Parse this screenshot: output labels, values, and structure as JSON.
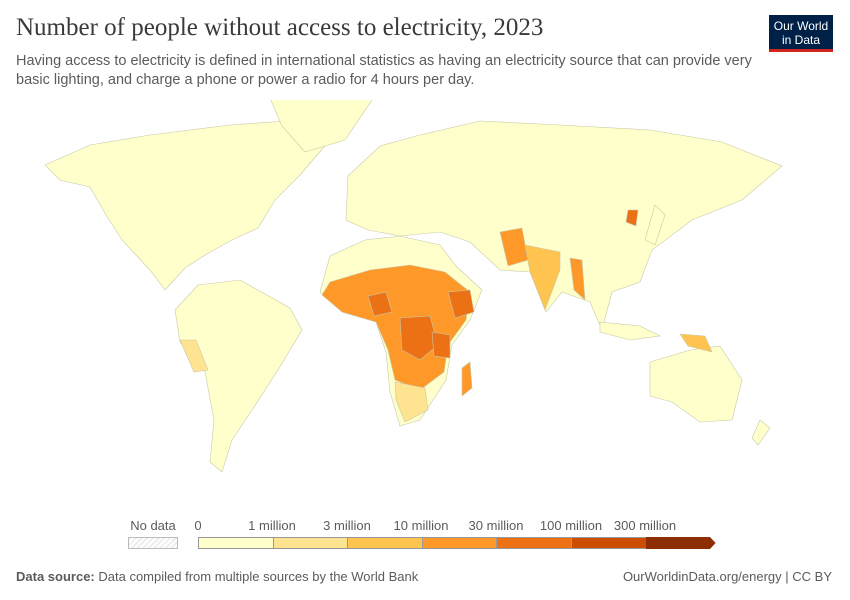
{
  "header": {
    "title": "Number of people without access to electricity, 2023",
    "subtitle": "Having access to electricity is defined in international statistics as having an electricity source that can provide very basic lighting, and charge a phone or power a radio for 4 hours per day.",
    "logo_text": "Our World in Data"
  },
  "legend": {
    "no_data_label": "No data",
    "labels": [
      "0",
      "1 million",
      "3 million",
      "10 million",
      "30 million",
      "100 million",
      "300 million"
    ],
    "colors": [
      "#ffffcc",
      "#fee391",
      "#fec44f",
      "#fe9929",
      "#ec7014",
      "#cc4c02",
      "#8c2d04"
    ]
  },
  "footer": {
    "source_label": "Data source:",
    "source_text": "Data compiled from multiple sources by the World Bank",
    "link": "OurWorldinData.org/energy | CC BY"
  }
}
